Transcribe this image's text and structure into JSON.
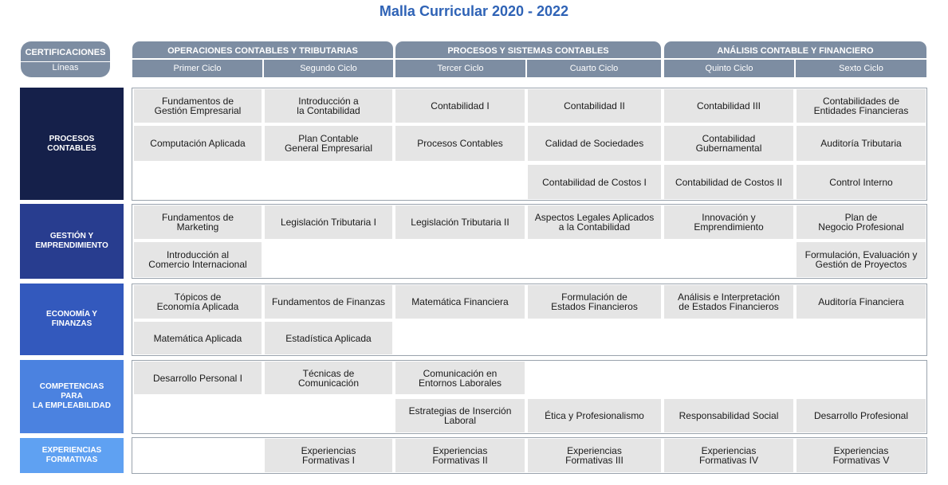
{
  "title": "Malla Curricular 2020 - 2022",
  "certificaciones": {
    "label": "CERTIFICACIONES",
    "sub": "Líneas"
  },
  "groups": [
    "OPERACIONES CONTABLES Y TRIBUTARIAS",
    "PROCESOS Y SISTEMAS CONTABLES",
    "ANÁLISIS CONTABLE Y FINANCIERO"
  ],
  "cycles": [
    "Primer Ciclo",
    "Segundo Ciclo",
    "Tercer Ciclo",
    "Cuarto Ciclo",
    "Quinto Ciclo",
    "Sexto Ciclo"
  ],
  "lines": [
    {
      "label": "PROCESOS\nCONTABLES",
      "color": "#15204a"
    },
    {
      "label": "GESTIÓN Y\nEMPRENDIMIENTO",
      "color": "#283d8f"
    },
    {
      "label": "ECONOMÍA Y\nFINANZAS",
      "color": "#3359bd"
    },
    {
      "label": "COMPETENCIAS\nPARA\nLA EMPLEABILIDAD",
      "color": "#4b82e0"
    },
    {
      "label": "EXPERIENCIAS\nFORMATIVAS",
      "color": "#5fa1f2"
    }
  ],
  "courses": {
    "pc_1_1": "Fundamentos de\nGestión Empresarial",
    "pc_1_2": "Introducción a\nla Contabilidad",
    "pc_1_3": "Contabilidad I",
    "pc_1_4": "Contabilidad II",
    "pc_1_5": "Contabilidad III",
    "pc_1_6": "Contabilidades de\nEntidades Financieras",
    "pc_2_1": "Computación Aplicada",
    "pc_2_2": "Plan Contable\nGeneral Empresarial",
    "pc_2_3": "Procesos Contables",
    "pc_2_4": "Calidad de Sociedades",
    "pc_2_5": "Contabilidad\nGubernamental",
    "pc_2_6": "Auditoría Tributaria",
    "pc_3_4": "Contabilidad de Costos I",
    "pc_3_5": "Contabilidad de Costos II",
    "pc_3_6": "Control Interno",
    "ge_1_1": "Fundamentos de\nMarketing",
    "ge_1_2": "Legislación Tributaria I",
    "ge_1_3": "Legislación Tributaria II",
    "ge_1_4": "Aspectos Legales Aplicados\na la Contabilidad",
    "ge_1_5": "Innovación y\nEmprendimiento",
    "ge_1_6": "Plan de\nNegocio Profesional",
    "ge_2_1": "Introducción al\nComercio Internacional",
    "ge_2_6": "Formulación, Evaluación y\nGestión de Proyectos",
    "ef_1_1": "Tópicos de\nEconomía Aplicada",
    "ef_1_2": "Fundamentos de Finanzas",
    "ef_1_3": "Matemática Financiera",
    "ef_1_4": "Formulación de\nEstados Financieros",
    "ef_1_5": "Análisis e Interpretación\nde Estados Financieros",
    "ef_1_6": "Auditoría Financiera",
    "ef_2_1": "Matemática Aplicada",
    "ef_2_2": "Estadística Aplicada",
    "ce_1_1": "Desarrollo Personal I",
    "ce_1_2": "Técnicas de\nComunicación",
    "ce_1_3": "Comunicación en\nEntornos Laborales",
    "ce_2_3": "Estrategias de Inserción\nLaboral",
    "ce_2_4": "Ética y Profesionalismo",
    "ce_2_5": "Responsabilidad Social",
    "ce_2_6": "Desarrollo Profesional",
    "xf_2": "Experiencias\nFormativas I",
    "xf_3": "Experiencias\nFormativas II",
    "xf_4": "Experiencias\nFormativas III",
    "xf_5": "Experiencias\nFormativas IV",
    "xf_6": "Experiencias\nFormativas V"
  }
}
